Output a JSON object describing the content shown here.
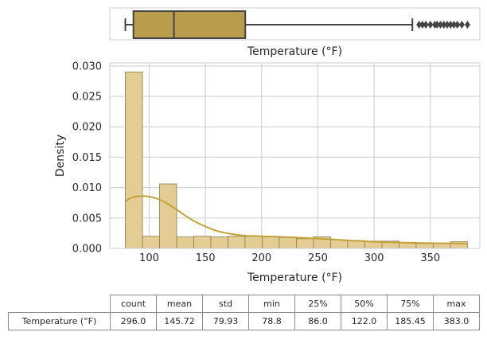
{
  "chart_data": [
    {
      "type": "boxplot",
      "xlabel": "Temperature (°F)",
      "xlim": [
        65,
        394
      ],
      "box": {
        "whisker_low": 78.8,
        "q1": 86.0,
        "median": 122.0,
        "q3": 185.45,
        "whisker_high": 334
      },
      "outliers": [
        340,
        343,
        346,
        350,
        354,
        356,
        359,
        362,
        365,
        368,
        371,
        374,
        378,
        383
      ],
      "colors": {
        "box_fill": "#b99c4c",
        "line": "#444444"
      }
    },
    {
      "type": "histogram",
      "xlabel": "Temperature (°F)",
      "ylabel": "Density",
      "xlim": [
        65,
        394
      ],
      "ylim": [
        0,
        0.0305
      ],
      "xticks": [
        "100",
        "150",
        "200",
        "250",
        "300",
        "350"
      ],
      "xtick_values": [
        100,
        150,
        200,
        250,
        300,
        350
      ],
      "yticks": [
        "0.000",
        "0.005",
        "0.010",
        "0.015",
        "0.020",
        "0.025",
        "0.030"
      ],
      "ytick_values": [
        0,
        0.005,
        0.01,
        0.015,
        0.02,
        0.025,
        0.03
      ],
      "grid": true,
      "bins": {
        "start": 78.8,
        "width": 15.21,
        "values": [
          0.029,
          0.002,
          0.0106,
          0.0019,
          0.002,
          0.0019,
          0.002,
          0.002,
          0.002,
          0.0018,
          0.0016,
          0.0019,
          0.0014,
          0.0013,
          0.0012,
          0.0012,
          0.001,
          0.0008,
          0.0008,
          0.0011
        ]
      },
      "kde": {
        "x": [
          78.8,
          85,
          95,
          105,
          115,
          125,
          140,
          160,
          180,
          200,
          230,
          260,
          300,
          340,
          383
        ],
        "y": [
          0.0077,
          0.0084,
          0.0086,
          0.0083,
          0.0075,
          0.0063,
          0.0045,
          0.0029,
          0.0022,
          0.002,
          0.0018,
          0.0015,
          0.0011,
          0.0009,
          0.0008
        ]
      },
      "colors": {
        "bar_fill": "#e3cd94",
        "bar_edge": "#8a7a50",
        "kde": "#c4a23a",
        "grid": "#cccccc",
        "axis": "#cccccc"
      }
    }
  ],
  "stats_table": {
    "columns": [
      "count",
      "mean",
      "std",
      "min",
      "25%",
      "50%",
      "75%",
      "max"
    ],
    "row_label": "Temperature (°F)",
    "values": [
      "296.0",
      "145.72",
      "79.93",
      "78.8",
      "86.0",
      "122.0",
      "185.45",
      "383.0"
    ]
  }
}
